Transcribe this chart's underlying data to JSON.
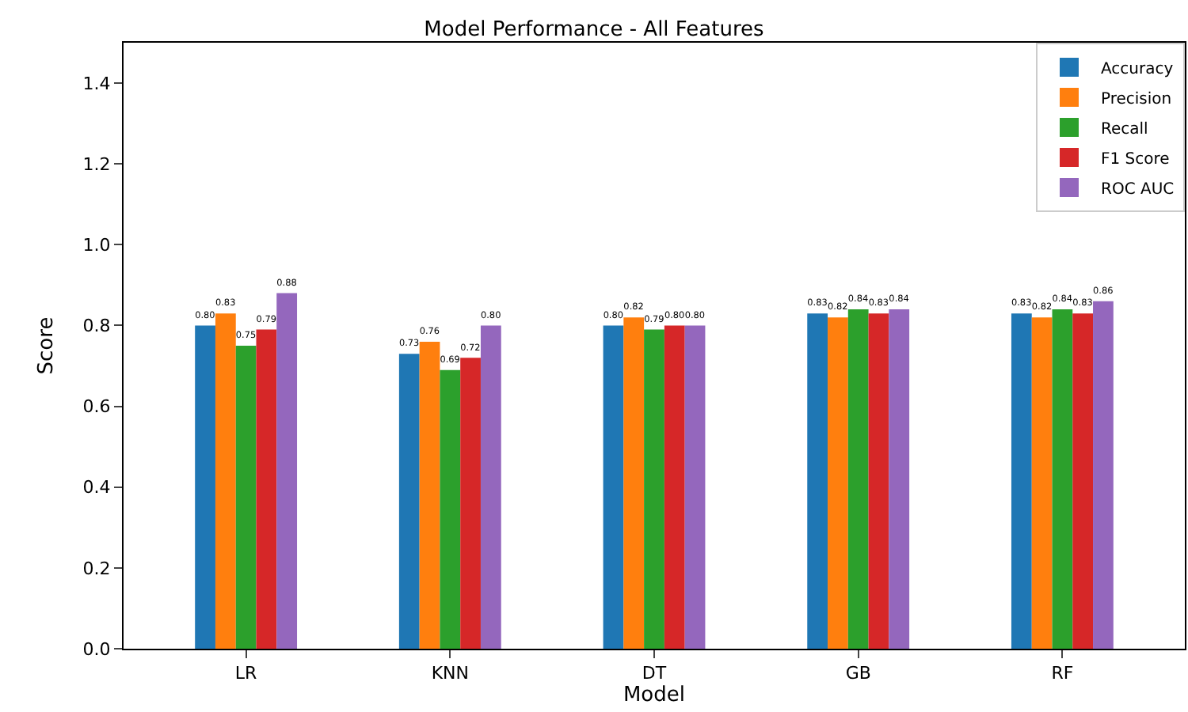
{
  "chart_data": {
    "type": "bar",
    "title": "Model Performance - All Features",
    "xlabel": "Model",
    "ylabel": "Score",
    "categories": [
      "LR",
      "KNN",
      "DT",
      "GB",
      "RF"
    ],
    "series": [
      {
        "name": "Accuracy",
        "color": "#1f77b4",
        "values": [
          0.8,
          0.73,
          0.8,
          0.83,
          0.83
        ],
        "value_labels": [
          "0.80",
          "0.73",
          "0.80",
          "0.83",
          "0.83"
        ]
      },
      {
        "name": "Precision",
        "color": "#ff7f0e",
        "values": [
          0.83,
          0.76,
          0.82,
          0.82,
          0.82
        ],
        "value_labels": [
          "0.83",
          "0.76",
          "0.82",
          "0.82",
          "0.82"
        ]
      },
      {
        "name": "Recall",
        "color": "#2ca02c",
        "values": [
          0.75,
          0.69,
          0.79,
          0.84,
          0.84
        ],
        "value_labels": [
          "0.75",
          "0.69",
          "0.79",
          "0.84",
          "0.84"
        ]
      },
      {
        "name": "F1 Score",
        "color": "#d62728",
        "values": [
          0.79,
          0.72,
          0.8,
          0.83,
          0.83
        ],
        "value_labels": [
          "0.79",
          "0.72",
          "0.80",
          "0.83",
          "0.83"
        ]
      },
      {
        "name": "ROC AUC",
        "color": "#9467bd",
        "values": [
          0.88,
          0.8,
          0.8,
          0.84,
          0.86
        ],
        "value_labels": [
          "0.88",
          "0.80",
          "0.80",
          "0.84",
          "0.86"
        ]
      }
    ],
    "ylim": [
      0,
      1.5
    ],
    "yticks": [
      {
        "value": 0,
        "label": "0.0"
      },
      {
        "value": 0.2,
        "label": "0.2"
      },
      {
        "value": 0.4,
        "label": "0.4"
      },
      {
        "value": 0.6,
        "label": "0.6"
      },
      {
        "value": 0.8,
        "label": "0.8"
      },
      {
        "value": 1.0,
        "label": "1.0"
      },
      {
        "value": 1.2,
        "label": "1.2"
      },
      {
        "value": 1.4,
        "label": "1.4"
      }
    ],
    "legend": "top right"
  }
}
